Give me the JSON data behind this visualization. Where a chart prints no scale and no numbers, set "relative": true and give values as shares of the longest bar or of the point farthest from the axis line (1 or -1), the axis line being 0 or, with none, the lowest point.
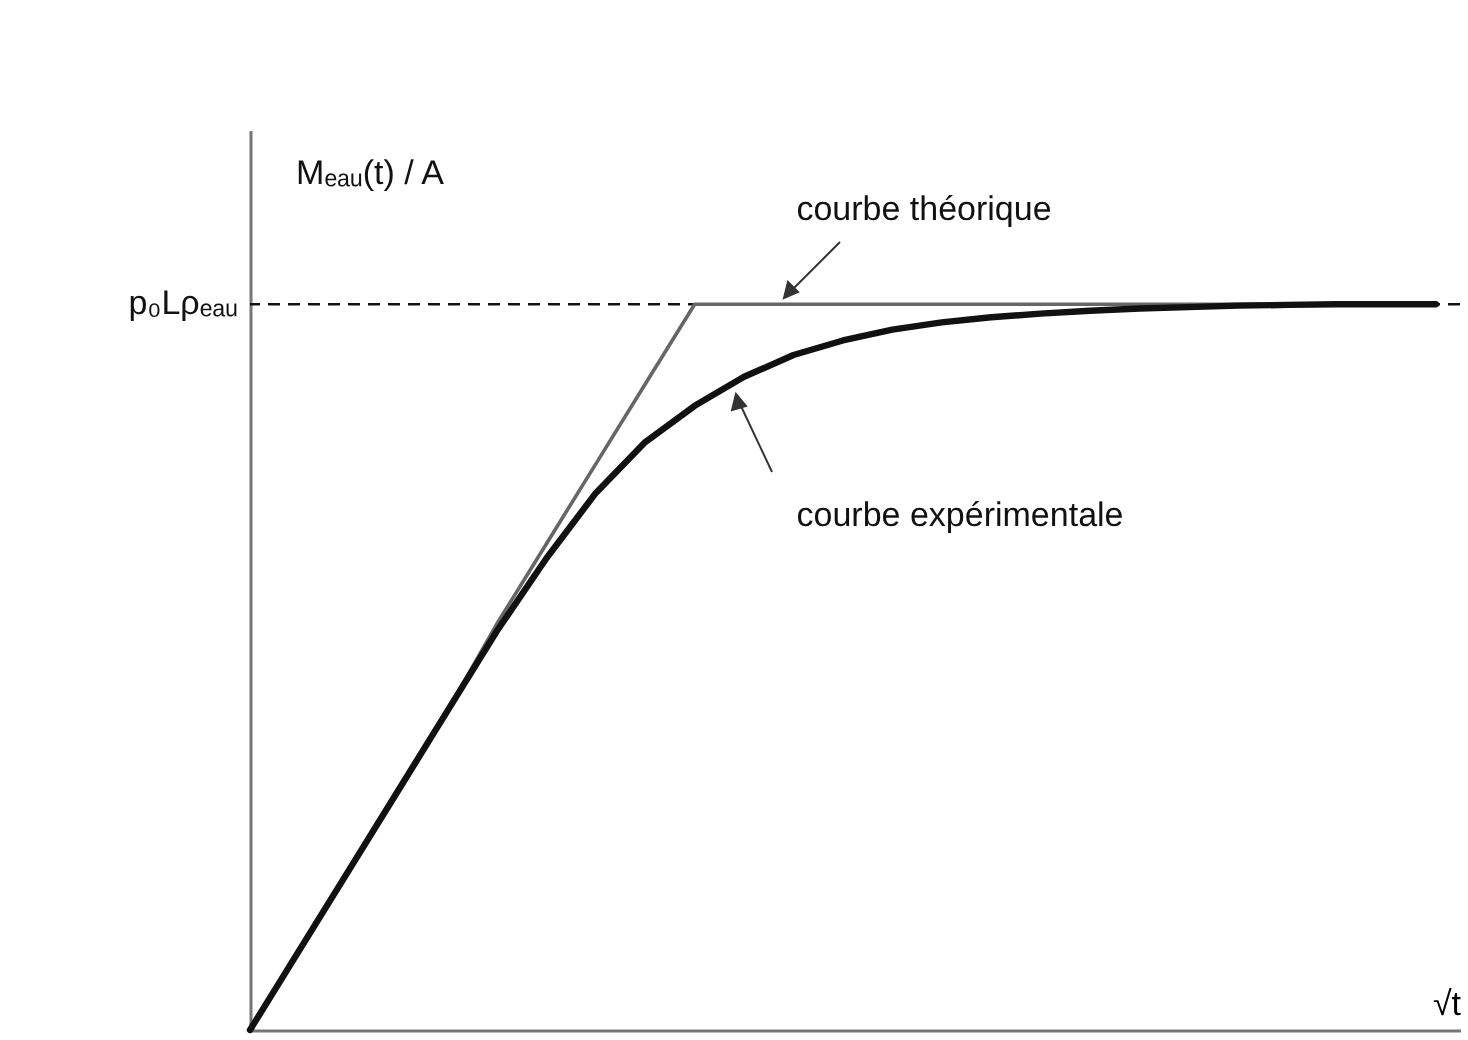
{
  "chart_data": {
    "type": "line",
    "relative": true,
    "xlabel": "√t",
    "ylabel": "Mₑₐᵤ(t) / A",
    "line_style": "solid",
    "marker": "none",
    "grid": false,
    "categories": [
      null,
      null,
      null,
      null,
      null,
      null,
      null,
      null,
      null,
      null,
      null,
      null,
      null,
      null,
      null,
      null,
      null,
      null,
      null,
      null,
      null,
      null,
      null,
      null,
      null
    ],
    "series": [
      {
        "color": "#666666",
        "values": [
          0,
          0.11,
          0.22,
          0.33,
          0.44,
          0.56,
          0.67,
          0.78,
          0.89,
          1,
          1,
          1,
          1,
          1,
          1,
          1,
          1,
          1,
          1,
          1,
          1,
          1,
          1,
          1,
          1
        ]
      },
      {
        "color": "#111111",
        "values": [
          0,
          0.11,
          0.22,
          0.33,
          0.44,
          0.55,
          0.65,
          0.74,
          0.81,
          0.86,
          0.9,
          0.93,
          0.95,
          0.965,
          0.975,
          0.982,
          0.987,
          0.991,
          0.994,
          0.996,
          0.998,
          0.999,
          1,
          1,
          1
        ]
      }
    ],
    "ref_lines": [
      {
        "axis": "y",
        "value": 1,
        "label": "p₀Lρₑₐᵤ",
        "line_style": "dashed",
        "color": "#111111"
      }
    ],
    "annotations": [
      "courbe théorique",
      "courbe expérimentale"
    ]
  }
}
